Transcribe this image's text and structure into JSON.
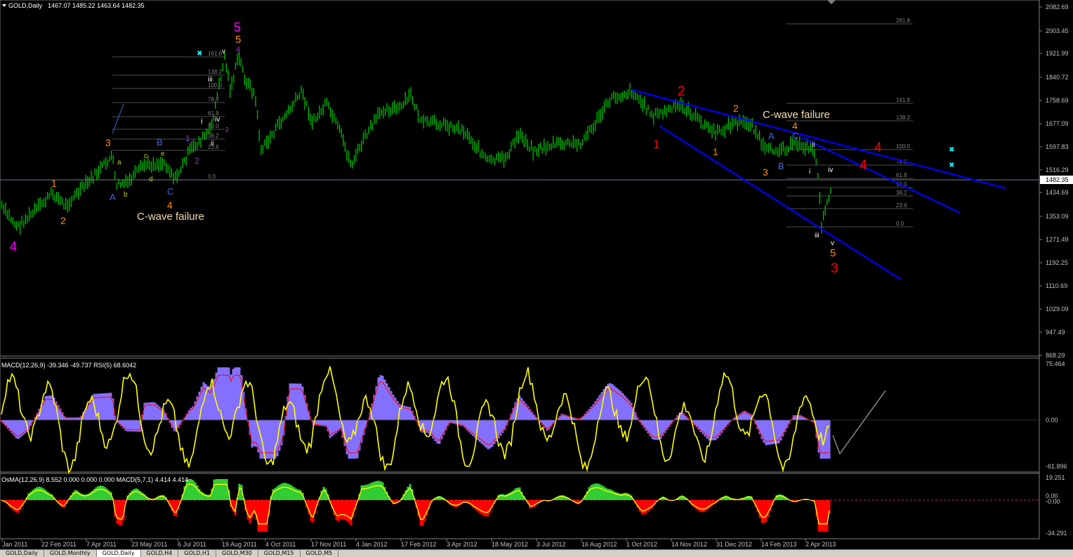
{
  "header": {
    "symbol": "GOLD,Daily",
    "ohlc": "1467.07 1485.22 1463.64 1482.35"
  },
  "price_axis": {
    "labels": [
      "2082.69",
      "2003.45",
      "1921.99",
      "1840.72",
      "1758.69",
      "1677.09",
      "1597.83",
      "1516.29",
      "1434.69",
      "1353.09",
      "1271.49",
      "1192.25",
      "1110.69",
      "1029.09",
      "947.49",
      "868.29"
    ],
    "current": "1482.35"
  },
  "macd_panel": {
    "title": "MACD(12,26,9) -39.346 -49.737  RSI(5) 68.6042",
    "axis": [
      "75.464",
      "0.00",
      "-61.896"
    ]
  },
  "osma_panel": {
    "title": "OsMA(12,26,9) 8.552 0.000 0.000 0.000   MACD(5,7,1) 4.414 4.414",
    "axis": [
      "19.251",
      "0.00",
      "-0.00",
      "-34.291"
    ]
  },
  "time_axis": [
    "Jan 2011",
    "22 Feb 2011",
    "7 Apr 2011",
    "23 May 2011",
    "6 Jul 2011",
    "19 Aug 2011",
    "4 Oct 2011",
    "17 Nov 2011",
    "4 Jan 2012",
    "17 Feb 2012",
    "3 Apr 2012",
    "18 May 2012",
    "3 Jul 2012",
    "16 Aug 2012",
    "1 Oct 2012",
    "14 Nov 2012",
    "31 Dec 2012",
    "14 Feb 2013",
    "2 Apr 2013"
  ],
  "fib_left": [
    "161.8",
    "138.2",
    "100.0",
    "78.6",
    "61.8",
    "50.0",
    "38.2",
    "23.6",
    "0.0"
  ],
  "fib_right": [
    "261.8",
    "161.8",
    "138.2",
    "100.0",
    "78.6",
    "61.8",
    "50.0",
    "38.2",
    "23.6",
    "0.0"
  ],
  "annotations": {
    "cwave_left": "C-wave failure",
    "cwave_right": "C-wave failure"
  },
  "wave_labels": [
    {
      "t": "4",
      "c": "#ff00ff"
    },
    {
      "t": "1",
      "c": "#ff8c00"
    },
    {
      "t": "2",
      "c": "#ff8c00"
    },
    {
      "t": "3",
      "c": "#ff8c00"
    },
    {
      "t": "A",
      "c": "#4169e1"
    },
    {
      "t": "b",
      "c": "#cccc00"
    },
    {
      "t": "a",
      "c": "#cccc00"
    },
    {
      "t": "c",
      "c": "#cccc00"
    },
    {
      "t": "d",
      "c": "#cccc00"
    },
    {
      "t": "e",
      "c": "#cccc00"
    },
    {
      "t": "B",
      "c": "#4169e1"
    },
    {
      "t": "C",
      "c": "#4169e1"
    },
    {
      "t": "4",
      "c": "#ff8c00"
    },
    {
      "t": "1",
      "c": "#9932cc"
    },
    {
      "t": "2",
      "c": "#9932cc"
    },
    {
      "t": "i",
      "c": "#ffffff"
    },
    {
      "t": "ii",
      "c": "#ffffff"
    },
    {
      "t": "iii",
      "c": "#ffffff"
    },
    {
      "t": "iv",
      "c": "#ffffff"
    },
    {
      "t": "v",
      "c": "#ffffff"
    },
    {
      "t": "3",
      "c": "#9932cc"
    },
    {
      "t": "4",
      "c": "#9932cc"
    },
    {
      "t": "5",
      "c": "#ff8c00"
    },
    {
      "t": "5",
      "c": "#ff00ff"
    },
    {
      "t": "1",
      "c": "#ff0000"
    },
    {
      "t": "2",
      "c": "#ff0000"
    },
    {
      "t": "1",
      "c": "#ff8c00"
    },
    {
      "t": "2",
      "c": "#ff8c00"
    },
    {
      "t": "A",
      "c": "#4169e1"
    },
    {
      "t": "B",
      "c": "#4169e1"
    },
    {
      "t": "C",
      "c": "#4169e1"
    },
    {
      "t": "3",
      "c": "#ff8c00"
    },
    {
      "t": "4",
      "c": "#ff8c00"
    },
    {
      "t": "ii",
      "c": "#ffffff"
    },
    {
      "t": "i",
      "c": "#ffffff"
    },
    {
      "t": "iii",
      "c": "#ffffff"
    },
    {
      "t": "iv",
      "c": "#ffffff"
    },
    {
      "t": "v",
      "c": "#ffffff"
    },
    {
      "t": "5",
      "c": "#ff8c00"
    },
    {
      "t": "3",
      "c": "#ff0000"
    },
    {
      "t": "4",
      "c": "#ff0000"
    },
    {
      "t": "4",
      "c": "#ff0000"
    }
  ],
  "colors": {
    "candles": "#00c000",
    "trendline": "#0000ff",
    "macd_hist": "#8470ff",
    "rsi": "#ffff00",
    "signal": "#ff0000",
    "axis_text": "#c0c0c0"
  },
  "tabs": [
    "GOLD,Daily",
    "GOLD,Monthly",
    "GOLD,Daily",
    "GOLD,H4",
    "GOLD,H1",
    "GOLD,M30",
    "GOLD,M15",
    "GOLD,M5"
  ],
  "active_tab": 2
}
